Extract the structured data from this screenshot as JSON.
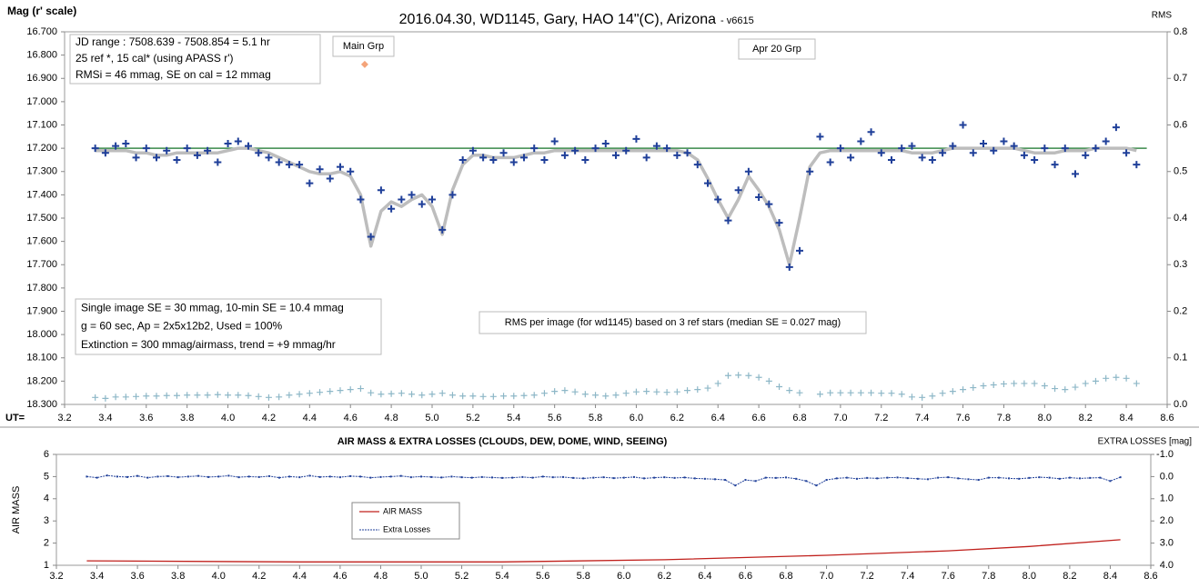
{
  "chart_data": [
    {
      "type": "line",
      "title": "2016.04.30,  WD1145, Gary, HAO  14\"(C), Arizona",
      "subtitle": "- v6615",
      "ylabel": "Mag (r' scale)",
      "y2label": "RMS",
      "xlabel": "UT=",
      "xlim": [
        3.2,
        8.6
      ],
      "xticks": [
        3.2,
        3.4,
        3.6,
        3.8,
        {
          "value": 4,
          "label": "4.0"
        },
        4.2,
        4.4,
        4.6,
        4.8,
        {
          "value": 5,
          "label": "5.0"
        },
        5.2,
        5.4,
        5.6,
        5.8,
        {
          "value": 6,
          "label": "6.0"
        },
        6.2,
        6.4,
        6.6,
        6.8,
        {
          "value": 7,
          "label": "7.0"
        },
        7.2,
        7.4,
        7.6,
        7.8,
        {
          "value": 8,
          "label": "8.0"
        },
        8.2,
        8.4,
        8.6
      ],
      "ylim": [
        16.7,
        18.3
      ],
      "y_inverted": true,
      "yticks": [
        {
          "value": 16.7,
          "label": "16.700"
        },
        {
          "value": 16.8,
          "label": "16.800"
        },
        {
          "value": 16.9,
          "label": "16.900"
        },
        {
          "value": 17.0,
          "label": "17.000"
        },
        {
          "value": 17.1,
          "label": "17.100"
        },
        {
          "value": 17.2,
          "label": "17.200"
        },
        {
          "value": 17.3,
          "label": "17.300"
        },
        {
          "value": 17.4,
          "label": "17.400"
        },
        {
          "value": 17.5,
          "label": "17.500"
        },
        {
          "value": 17.6,
          "label": "17.600"
        },
        {
          "value": 17.7,
          "label": "17.700"
        },
        {
          "value": 17.8,
          "label": "17.800"
        },
        {
          "value": 17.9,
          "label": "17.900"
        },
        {
          "value": 18.0,
          "label": "18.000"
        },
        {
          "value": 18.1,
          "label": "18.100"
        },
        {
          "value": 18.2,
          "label": "18.200"
        },
        {
          "value": 18.3,
          "label": "18.300"
        }
      ],
      "y2lim": [
        0,
        0.8
      ],
      "y2ticks": [
        {
          "value": 0,
          "label": "0.0"
        },
        0.1,
        0.2,
        0.3,
        0.4,
        0.5,
        0.6,
        0.7,
        0.8
      ],
      "grid": false,
      "x": [
        3.35,
        3.4,
        3.45,
        3.5,
        3.55,
        3.6,
        3.65,
        3.7,
        3.75,
        3.8,
        3.85,
        3.9,
        3.95,
        4,
        4.05,
        4.1,
        4.15,
        4.2,
        4.25,
        4.3,
        4.35,
        4.4,
        4.45,
        4.5,
        4.55,
        4.6,
        4.65,
        4.7,
        4.75,
        4.8,
        4.85,
        4.9,
        4.95,
        5,
        5.05,
        5.1,
        5.15,
        5.2,
        5.25,
        5.3,
        5.35,
        5.4,
        5.45,
        5.5,
        5.55,
        5.6,
        5.65,
        5.7,
        5.75,
        5.8,
        5.85,
        5.9,
        5.95,
        6,
        6.05,
        6.1,
        6.15,
        6.2,
        6.25,
        6.3,
        6.35,
        6.4,
        6.45,
        6.5,
        6.55,
        6.6,
        6.65,
        6.7,
        6.75,
        6.8,
        6.85,
        6.9,
        6.95,
        7,
        7.05,
        7.1,
        7.15,
        7.2,
        7.25,
        7.3,
        7.35,
        7.4,
        7.45,
        7.5,
        7.55,
        7.6,
        7.65,
        7.7,
        7.75,
        7.8,
        7.85,
        7.9,
        7.95,
        8,
        8.05,
        8.1,
        8.15,
        8.2,
        8.25,
        8.3,
        8.35,
        8.4,
        8.45
      ],
      "series": [
        {
          "style": "line",
          "color": "#3a8a4a",
          "width": 1.5,
          "x": [
            3.35,
            8.5
          ],
          "values": [
            17.2,
            17.2
          ]
        },
        {
          "style": "line",
          "color": "#bdbdbd",
          "width": 3.5,
          "values": [
            17.21,
            17.21,
            17.21,
            17.21,
            17.22,
            17.22,
            17.23,
            17.23,
            17.22,
            17.22,
            17.22,
            17.22,
            17.22,
            17.21,
            17.2,
            17.2,
            17.21,
            17.22,
            17.24,
            17.26,
            17.28,
            17.3,
            17.31,
            17.31,
            17.3,
            17.32,
            17.4,
            17.62,
            17.47,
            17.43,
            17.45,
            17.42,
            17.4,
            17.45,
            17.57,
            17.38,
            17.27,
            17.23,
            17.23,
            17.24,
            17.24,
            17.24,
            17.23,
            17.22,
            17.22,
            17.21,
            17.21,
            17.21,
            17.21,
            17.21,
            17.21,
            17.21,
            17.21,
            17.21,
            17.21,
            17.21,
            17.21,
            17.21,
            17.22,
            17.25,
            17.33,
            17.42,
            17.5,
            17.42,
            17.32,
            17.38,
            17.45,
            17.55,
            17.7,
            17.5,
            17.28,
            17.22,
            17.21,
            17.21,
            17.21,
            17.21,
            17.21,
            17.21,
            17.21,
            17.21,
            17.22,
            17.22,
            17.22,
            17.21,
            17.2,
            17.2,
            17.2,
            17.2,
            17.2,
            17.2,
            17.2,
            17.21,
            17.22,
            17.22,
            17.22,
            17.21,
            17.21,
            17.21,
            17.2,
            17.2,
            17.2,
            17.2,
            17.21
          ]
        },
        {
          "style": "plus",
          "color": "#1f3f99",
          "width": 2,
          "size": 4,
          "values": [
            17.2,
            17.22,
            17.19,
            17.18,
            17.24,
            17.2,
            17.24,
            17.21,
            17.25,
            17.2,
            17.23,
            17.21,
            17.26,
            17.18,
            17.17,
            17.19,
            17.22,
            17.24,
            17.26,
            17.27,
            17.27,
            17.35,
            17.29,
            17.33,
            17.28,
            17.3,
            17.42,
            17.58,
            17.38,
            17.46,
            17.42,
            17.4,
            17.44,
            17.42,
            17.55,
            17.4,
            17.25,
            17.21,
            17.24,
            17.25,
            17.22,
            17.26,
            17.24,
            17.2,
            17.25,
            17.17,
            17.23,
            17.21,
            17.25,
            17.2,
            17.18,
            17.23,
            17.21,
            17.16,
            17.24,
            17.19,
            17.2,
            17.23,
            17.22,
            17.27,
            17.35,
            17.42,
            17.51,
            17.38,
            17.3,
            17.41,
            17.44,
            17.52,
            17.71,
            17.64,
            17.3,
            17.15,
            17.26,
            17.2,
            17.24,
            17.17,
            17.13,
            17.22,
            17.25,
            17.2,
            17.19,
            17.24,
            17.25,
            17.22,
            17.19,
            17.1,
            17.22,
            17.18,
            17.21,
            17.17,
            17.19,
            17.23,
            17.25,
            17.2,
            17.27,
            17.2,
            17.31,
            17.23,
            17.2,
            17.17,
            17.11,
            17.22,
            17.27
          ]
        },
        {
          "style": "plus",
          "color": "#8db7c7",
          "width": 1.2,
          "size": 3.5,
          "axis": "y2",
          "values": [
            0.015,
            0.013,
            0.016,
            0.016,
            0.017,
            0.018,
            0.018,
            0.019,
            0.019,
            0.02,
            0.02,
            0.02,
            0.021,
            0.02,
            0.02,
            0.019,
            0.017,
            0.015,
            0.016,
            0.02,
            0.022,
            0.024,
            0.026,
            0.028,
            0.03,
            0.032,
            0.034,
            0.025,
            0.022,
            0.023,
            0.024,
            0.022,
            0.02,
            0.022,
            0.024,
            0.02,
            0.018,
            0.018,
            0.017,
            0.017,
            0.018,
            0.018,
            0.019,
            0.02,
            0.024,
            0.028,
            0.03,
            0.027,
            0.022,
            0.02,
            0.018,
            0.02,
            0.024,
            0.027,
            0.028,
            0.027,
            0.026,
            0.027,
            0.03,
            0.032,
            0.035,
            0.045,
            0.062,
            0.063,
            0.062,
            0.058,
            0.05,
            0.038,
            0.03,
            0.025,
            null,
            0.022,
            0.025,
            0.025,
            0.025,
            0.025,
            0.025,
            0.024,
            0.024,
            0.022,
            0.016,
            0.015,
            0.018,
            0.024,
            0.028,
            0.032,
            0.036,
            0.04,
            0.042,
            0.044,
            0.045,
            0.045,
            0.045,
            0.04,
            0.034,
            0.032,
            0.037,
            0.045,
            0.05,
            0.056,
            0.058,
            0.056,
            0.045
          ]
        },
        {
          "style": "diamond",
          "color": "#f4a47a",
          "size": 4,
          "x": [
            4.67
          ],
          "values": [
            16.84
          ]
        }
      ],
      "annotations": [
        [
          "JD range  : 7508.639 - 7508.854  = 5.1 hr",
          "25 ref *, 15 cal* (using APASS r')",
          "RMSi = 46 mmag, SE on cal = 12 mmag"
        ],
        [
          "Main Grp"
        ],
        [
          "Apr 20 Grp"
        ],
        [
          "Single image SE = 30 mmag, 10-min SE = 10.4 mmag",
          "g = 60 sec, Ap = 2x5x12b2, Used = 100%",
          "Extinction = 300 mmag/airmass, trend = +9 mmag/hr"
        ],
        [
          "RMS per image (for wd1145) based on 3 ref stars (median SE = 0.027 mag)"
        ]
      ]
    },
    {
      "type": "line",
      "title": "AIR MASS & EXTRA LOSSES (CLOUDS, DEW, DOME, WIND, SEEING)",
      "ylabel": "AIR MASS",
      "y2label": "EXTRA LOSSES [mag]",
      "xlim": [
        3.2,
        8.6
      ],
      "xticks": [
        3.2,
        3.4,
        3.6,
        3.8,
        {
          "value": 4,
          "label": "4.0"
        },
        4.2,
        4.4,
        4.6,
        4.8,
        {
          "value": 5,
          "label": "5.0"
        },
        5.2,
        5.4,
        5.6,
        5.8,
        {
          "value": 6,
          "label": "6.0"
        },
        6.2,
        6.4,
        6.6,
        6.8,
        {
          "value": 7,
          "label": "7.0"
        },
        7.2,
        7.4,
        7.6,
        7.8,
        {
          "value": 8,
          "label": "8.0"
        },
        8.2,
        8.4,
        8.6
      ],
      "ylim": [
        1,
        6
      ],
      "yticks": [
        1,
        2,
        3,
        4,
        5,
        6
      ],
      "y2lim": [
        -1,
        4
      ],
      "y2_inverted": true,
      "y2ticks": [
        {
          "value": -1,
          "label": "-1.0"
        },
        {
          "value": 0,
          "label": "0.0"
        },
        {
          "value": 1,
          "label": "1.0"
        },
        {
          "value": 2,
          "label": "2.0"
        },
        {
          "value": 3,
          "label": "3.0"
        },
        {
          "value": 4,
          "label": "4.0"
        }
      ],
      "grid": false,
      "legend": true,
      "x": [
        3.35,
        3.4,
        3.45,
        3.5,
        3.55,
        3.6,
        3.65,
        3.7,
        3.75,
        3.8,
        3.85,
        3.9,
        3.95,
        4,
        4.05,
        4.1,
        4.15,
        4.2,
        4.25,
        4.3,
        4.35,
        4.4,
        4.45,
        4.5,
        4.55,
        4.6,
        4.65,
        4.7,
        4.75,
        4.8,
        4.85,
        4.9,
        4.95,
        5,
        5.05,
        5.1,
        5.15,
        5.2,
        5.25,
        5.3,
        5.35,
        5.4,
        5.45,
        5.5,
        5.55,
        5.6,
        5.65,
        5.7,
        5.75,
        5.8,
        5.85,
        5.9,
        5.95,
        6,
        6.05,
        6.1,
        6.15,
        6.2,
        6.25,
        6.3,
        6.35,
        6.4,
        6.45,
        6.5,
        6.55,
        6.6,
        6.65,
        6.7,
        6.75,
        6.8,
        6.85,
        6.9,
        6.95,
        7,
        7.05,
        7.1,
        7.15,
        7.2,
        7.25,
        7.3,
        7.35,
        7.4,
        7.45,
        7.5,
        7.55,
        7.6,
        7.65,
        7.7,
        7.75,
        7.8,
        7.85,
        7.9,
        7.95,
        8,
        8.05,
        8.1,
        8.15,
        8.2,
        8.25,
        8.3,
        8.35,
        8.4,
        8.45
      ],
      "series": [
        {
          "name": "AIR MASS",
          "style": "line",
          "color": "#c0201c",
          "width": 1.3,
          "x": [
            3.35,
            4.4,
            5.4,
            6.2,
            7.0,
            7.6,
            8.0,
            8.45
          ],
          "values": [
            1.2,
            1.15,
            1.15,
            1.25,
            1.45,
            1.65,
            1.85,
            2.15
          ]
        },
        {
          "name": "Extra Losses",
          "style": "dots",
          "color": "#1f3f99",
          "width": 1,
          "axis": "y2",
          "values": [
            0,
            0.05,
            -0.05,
            0,
            0.02,
            -0.03,
            0.05,
            0,
            -0.02,
            0.03,
            0,
            -0.03,
            0.02,
            0,
            -0.04,
            0.03,
            0,
            0.02,
            -0.02,
            0.05,
            0,
            0.03,
            -0.04,
            0.02,
            0,
            0.03,
            -0.02,
            0,
            0.05,
            0.02,
            0,
            -0.03,
            0.03,
            0,
            0.02,
            0.04,
            0,
            0.03,
            0.05,
            0.02,
            0.04,
            0.06,
            0.05,
            0.02,
            0.05,
            0,
            0.03,
            0.02,
            0.06,
            0.08,
            0.05,
            0.03,
            0.07,
            0.05,
            0.02,
            0.08,
            0.05,
            0.03,
            0.06,
            0.04,
            0.08,
            0.1,
            0.12,
            0.15,
            0.4,
            0.15,
            0.2,
            0.05,
            0.06,
            0.04,
            0.1,
            0.2,
            0.4,
            0.15,
            0.08,
            0.05,
            0.1,
            0.06,
            0.08,
            0.05,
            0.04,
            0.07,
            0.1,
            0.12,
            0.05,
            0.03,
            0.08,
            0.12,
            0.15,
            0.05,
            0.05,
            0.08,
            0.1,
            0.06,
            0.03,
            0.05,
            0.1,
            0.05,
            0.08,
            0.06,
            0.05,
            0.2,
            0.03
          ]
        }
      ]
    }
  ]
}
